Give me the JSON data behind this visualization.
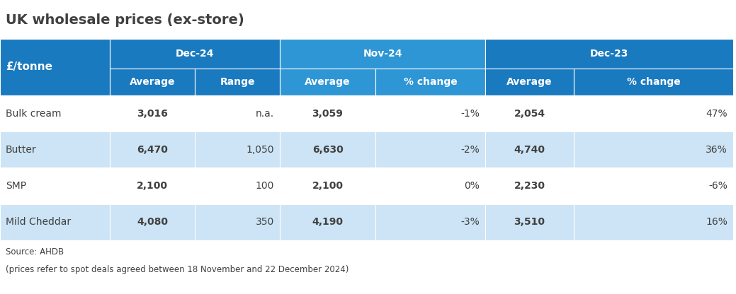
{
  "title": "UK wholesale prices (ex-store)",
  "source_line1": "Source: AHDB",
  "source_line2": "(prices refer to spot deals agreed between 18 November and 22 December 2024)",
  "col_group_headers": [
    "Dec-24",
    "Nov-24",
    "Dec-23"
  ],
  "col_headers": [
    "Average",
    "Range",
    "Average",
    "% change",
    "Average",
    "% change"
  ],
  "row_header_label": "£/tonne",
  "rows": [
    [
      "Bulk cream",
      "3,016",
      "n.a.",
      "3,059",
      "-1%",
      "2,054",
      "47%"
    ],
    [
      "Butter",
      "6,470",
      "1,050",
      "6,630",
      "-2%",
      "4,740",
      "36%"
    ],
    [
      "SMP",
      "2,100",
      "100",
      "2,100",
      "0%",
      "2,230",
      "-6%"
    ],
    [
      "Mild Cheddar",
      "4,080",
      "350",
      "4,190",
      "-3%",
      "3,510",
      "16%"
    ]
  ],
  "color_header_dark": "#1a7abf",
  "color_header_mid": "#2e96d4",
  "color_row_alt": "#cce4f5",
  "color_row_white": "#e8f4fc",
  "color_text_dark": "#404040",
  "color_text_white": "#ffffff",
  "figsize": [
    10.39,
    4.16
  ],
  "dpi": 100,
  "title_fontsize": 14,
  "header_fontsize": 10,
  "data_fontsize": 10
}
